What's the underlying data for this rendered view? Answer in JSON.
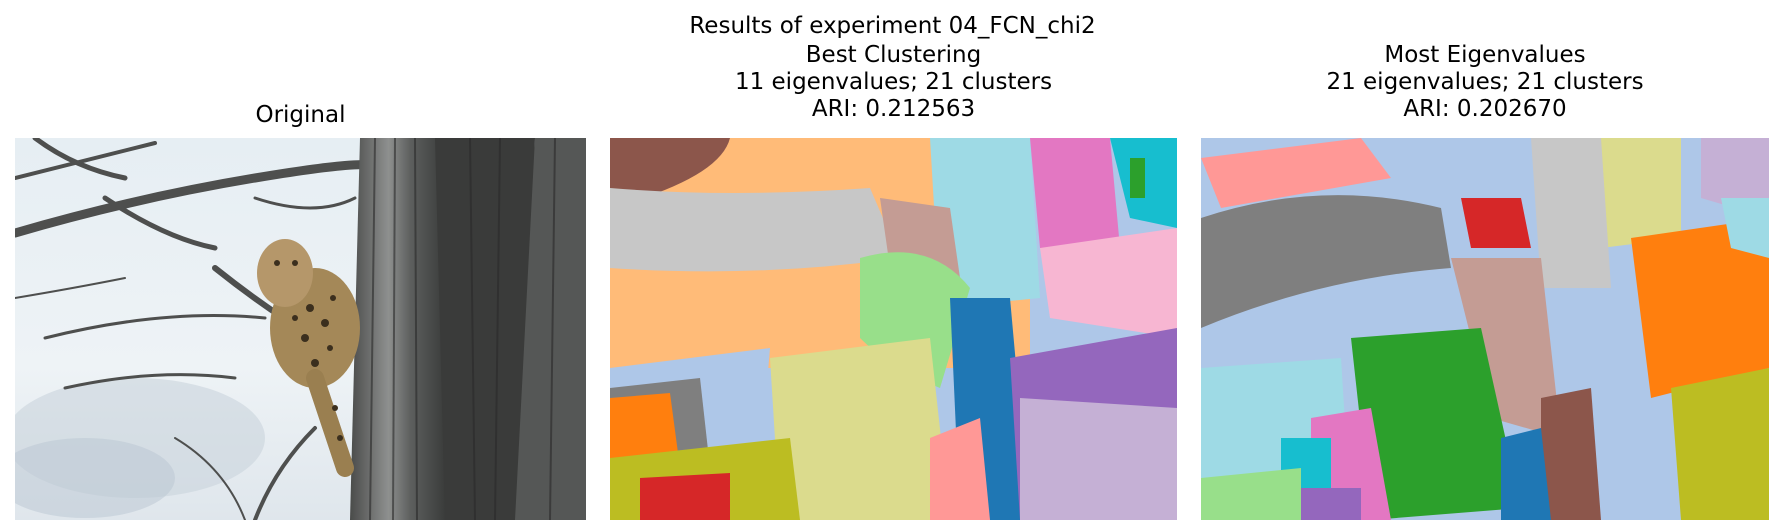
{
  "figure": {
    "suptitle": "Results of experiment 04_FCN_chi2",
    "panels": [
      {
        "title_lines": [
          "Original"
        ],
        "image": "photo of a leopard resting on a tree branch"
      },
      {
        "title_lines": [
          "Best Clustering",
          "11 eigenvalues; 21 clusters",
          "ARI: 0.212563"
        ],
        "image": "segmentation map with colored cluster regions"
      },
      {
        "title_lines": [
          "Most Eigenvalues",
          "21 eigenvalues; 21 clusters",
          "ARI: 0.202670"
        ],
        "image": "segmentation map with colored cluster regions"
      }
    ]
  },
  "palette": {
    "tab20": [
      "#1f77b4",
      "#aec7e8",
      "#ff7f0e",
      "#ffbb78",
      "#2ca02c",
      "#98df8a",
      "#d62728",
      "#ff9896",
      "#9467bd",
      "#c5b0d5",
      "#8c564b",
      "#c49c94",
      "#e377c2",
      "#f7b6d2",
      "#7f7f7f",
      "#c7c7c7",
      "#bcbd22",
      "#dbdb8d",
      "#17becf",
      "#9edae5"
    ]
  }
}
